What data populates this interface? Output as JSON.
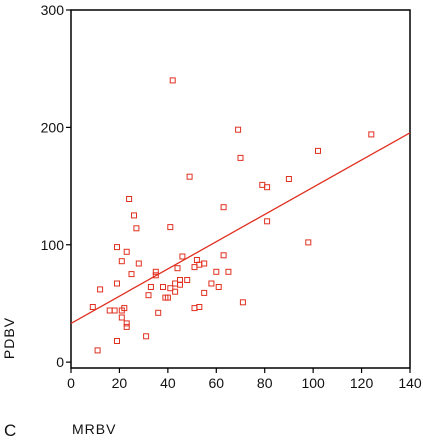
{
  "panel_label": "C",
  "chart_data": {
    "type": "scatter",
    "xlabel": "MRBV",
    "ylabel": "PDBV",
    "xlim": [
      0,
      140
    ],
    "ylim": [
      -5,
      300
    ],
    "x_ticks": [
      "0",
      "20",
      "40",
      "60",
      "80",
      "100",
      "120",
      "140"
    ],
    "y_ticks": [
      "0",
      "100",
      "200",
      "300"
    ],
    "grid": false,
    "marker_color": "#e03020",
    "line_color": "#e03020",
    "frame_color": "#000000",
    "fit_line": {
      "intercept": 33,
      "slope": 1.16
    },
    "points": [
      {
        "x": 9,
        "y": 47
      },
      {
        "x": 11,
        "y": 10
      },
      {
        "x": 12,
        "y": 62
      },
      {
        "x": 16,
        "y": 44
      },
      {
        "x": 18,
        "y": 44
      },
      {
        "x": 19,
        "y": 18
      },
      {
        "x": 19,
        "y": 67
      },
      {
        "x": 19,
        "y": 98
      },
      {
        "x": 21,
        "y": 44
      },
      {
        "x": 21,
        "y": 38
      },
      {
        "x": 21,
        "y": 86
      },
      {
        "x": 22,
        "y": 46
      },
      {
        "x": 23,
        "y": 94
      },
      {
        "x": 23,
        "y": 33
      },
      {
        "x": 23,
        "y": 30
      },
      {
        "x": 24,
        "y": 139
      },
      {
        "x": 25,
        "y": 75
      },
      {
        "x": 26,
        "y": 125
      },
      {
        "x": 27,
        "y": 114
      },
      {
        "x": 28,
        "y": 84
      },
      {
        "x": 31,
        "y": 22
      },
      {
        "x": 32,
        "y": 57
      },
      {
        "x": 33,
        "y": 64
      },
      {
        "x": 35,
        "y": 77
      },
      {
        "x": 35,
        "y": 74
      },
      {
        "x": 36,
        "y": 42
      },
      {
        "x": 38,
        "y": 64
      },
      {
        "x": 39,
        "y": 55
      },
      {
        "x": 40,
        "y": 55
      },
      {
        "x": 41,
        "y": 63
      },
      {
        "x": 41,
        "y": 115
      },
      {
        "x": 42,
        "y": 240
      },
      {
        "x": 43,
        "y": 60
      },
      {
        "x": 43,
        "y": 67
      },
      {
        "x": 44,
        "y": 80
      },
      {
        "x": 45,
        "y": 70
      },
      {
        "x": 45,
        "y": 66
      },
      {
        "x": 46,
        "y": 90
      },
      {
        "x": 48,
        "y": 70
      },
      {
        "x": 49,
        "y": 158
      },
      {
        "x": 51,
        "y": 46
      },
      {
        "x": 51,
        "y": 81
      },
      {
        "x": 52,
        "y": 87
      },
      {
        "x": 53,
        "y": 83
      },
      {
        "x": 53,
        "y": 47
      },
      {
        "x": 55,
        "y": 84
      },
      {
        "x": 55,
        "y": 59
      },
      {
        "x": 58,
        "y": 67
      },
      {
        "x": 60,
        "y": 77
      },
      {
        "x": 61,
        "y": 64
      },
      {
        "x": 63,
        "y": 91
      },
      {
        "x": 63,
        "y": 132
      },
      {
        "x": 65,
        "y": 77
      },
      {
        "x": 69,
        "y": 198
      },
      {
        "x": 70,
        "y": 174
      },
      {
        "x": 71,
        "y": 51
      },
      {
        "x": 79,
        "y": 151
      },
      {
        "x": 81,
        "y": 149
      },
      {
        "x": 81,
        "y": 120
      },
      {
        "x": 90,
        "y": 156
      },
      {
        "x": 98,
        "y": 102
      },
      {
        "x": 102,
        "y": 180
      },
      {
        "x": 124,
        "y": 194
      }
    ]
  }
}
